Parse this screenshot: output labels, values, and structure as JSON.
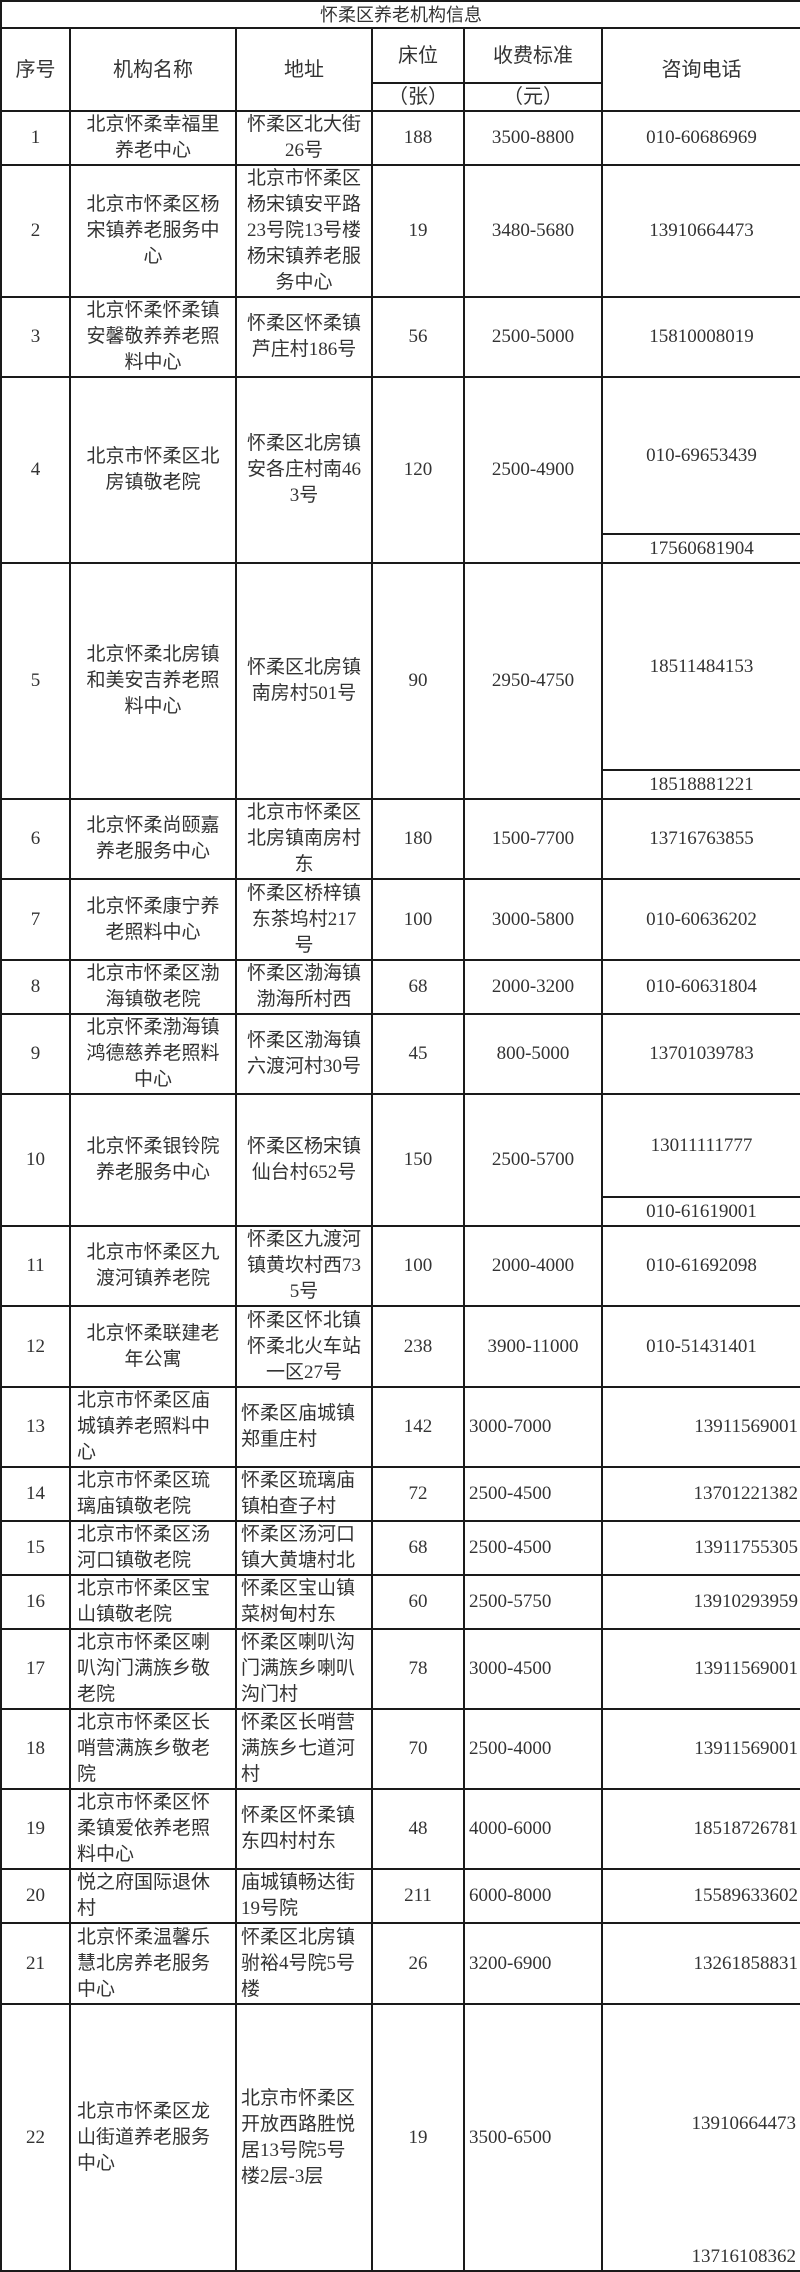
{
  "title": "怀柔区养老机构信息",
  "headers": {
    "id": "序号",
    "name": "机构名称",
    "address": "地址",
    "beds": "床位",
    "beds_unit": "（张）",
    "fee": "收费标准",
    "fee_unit": "（元）",
    "phone": "咨询电话"
  },
  "rows": [
    {
      "id": "1",
      "name": "北京怀柔幸福里养老中心",
      "address": "怀柔区北大街26号",
      "beds": "188",
      "fee": "3500-8800",
      "phones": [
        "010-60686969"
      ]
    },
    {
      "id": "2",
      "name": "北京市怀柔区杨宋镇养老服务中心",
      "address": "北京市怀柔区杨宋镇安平路23号院13号楼杨宋镇养老服务中心",
      "beds": "19",
      "fee": "3480-5680",
      "phones": [
        "13910664473"
      ]
    },
    {
      "id": "3",
      "name": "北京怀柔怀柔镇安馨敬养养老照料中心",
      "address": "怀柔区怀柔镇芦庄村186号",
      "beds": "56",
      "fee": "2500-5000",
      "phones": [
        "15810008019"
      ]
    },
    {
      "id": "4",
      "name": "北京市怀柔区北房镇敬老院",
      "address": "怀柔区北房镇安各庄村南463号",
      "beds": "120",
      "fee": "2500-4900",
      "phones": [
        "010-69653439",
        "17560681904"
      ]
    },
    {
      "id": "5",
      "name": "北京怀柔北房镇和美安吉养老照料中心",
      "address": "怀柔区北房镇南房村501号",
      "beds": "90",
      "fee": "2950-4750",
      "phones": [
        "18511484153",
        "18518881221"
      ]
    },
    {
      "id": "6",
      "name": "北京怀柔尚颐嘉养老服务中心",
      "address": "北京市怀柔区北房镇南房村东",
      "beds": "180",
      "fee": "1500-7700",
      "phones": [
        "13716763855"
      ]
    },
    {
      "id": "7",
      "name": "北京怀柔康宁养老照料中心",
      "address": "怀柔区桥梓镇东茶坞村217号",
      "beds": "100",
      "fee": "3000-5800",
      "phones": [
        "010-60636202"
      ]
    },
    {
      "id": "8",
      "name": "北京市怀柔区渤海镇敬老院",
      "address": "怀柔区渤海镇渤海所村西",
      "beds": "68",
      "fee": "2000-3200",
      "phones": [
        "010-60631804"
      ]
    },
    {
      "id": "9",
      "name": "北京怀柔渤海镇鸿德慈养老照料中心",
      "address": "怀柔区渤海镇六渡河村30号",
      "beds": "45",
      "fee": "800-5000",
      "phones": [
        "13701039783"
      ]
    },
    {
      "id": "10",
      "name": "北京怀柔银铃院养老服务中心",
      "address": "怀柔区杨宋镇仙台村652号",
      "beds": "150",
      "fee": "2500-5700",
      "phones": [
        "13011111777",
        "010-61619001"
      ]
    },
    {
      "id": "11",
      "name": "北京市怀柔区九渡河镇养老院",
      "address": "怀柔区九渡河镇黄坎村西735号",
      "beds": "100",
      "fee": "2000-4000",
      "phones": [
        "010-61692098"
      ]
    },
    {
      "id": "12",
      "name": "北京怀柔联建老年公寓",
      "address": "怀柔区怀北镇怀柔北火车站一区27号",
      "beds": "238",
      "fee": "3900-11000",
      "phones": [
        "010-51431401"
      ]
    },
    {
      "id": "13",
      "name": "北京市怀柔区庙城镇养老照料中心",
      "address": "怀柔区庙城镇郑重庄村",
      "beds": "142",
      "fee": "3000-7000",
      "phones": [
        "13911569001"
      ]
    },
    {
      "id": "14",
      "name": "北京市怀柔区琉璃庙镇敬老院",
      "address": "怀柔区琉璃庙镇柏查子村",
      "beds": "72",
      "fee": "2500-4500",
      "phones": [
        "13701221382"
      ]
    },
    {
      "id": "15",
      "name": "北京市怀柔区汤河口镇敬老院",
      "address": "怀柔区汤河口镇大黄塘村北",
      "beds": "68",
      "fee": "2500-4500",
      "phones": [
        "13911755305"
      ]
    },
    {
      "id": "16",
      "name": "北京市怀柔区宝山镇敬老院",
      "address": "怀柔区宝山镇菜树甸村东",
      "beds": "60",
      "fee": "2500-5750",
      "phones": [
        "13910293959"
      ]
    },
    {
      "id": "17",
      "name": "北京市怀柔区喇叭沟门满族乡敬老院",
      "address": "怀柔区喇叭沟门满族乡喇叭沟门村",
      "beds": "78",
      "fee": "3000-4500",
      "phones": [
        "13911569001"
      ]
    },
    {
      "id": "18",
      "name": "北京市怀柔区长哨营满族乡敬老院",
      "address": "怀柔区长哨营满族乡七道河村",
      "beds": "70",
      "fee": "2500-4000",
      "phones": [
        "13911569001"
      ]
    },
    {
      "id": "19",
      "name": "北京市怀柔区怀柔镇爱依养老照料中心",
      "address": "怀柔区怀柔镇东四村村东",
      "beds": "48",
      "fee": "4000-6000",
      "phones": [
        "18518726781"
      ]
    },
    {
      "id": "20",
      "name": "悦之府国际退休村",
      "address": "庙城镇畅达街19号院",
      "beds": "211",
      "fee": "6000-8000",
      "phones": [
        "15589633602"
      ]
    },
    {
      "id": "21",
      "name": "北京怀柔温馨乐慧北房养老服务中心",
      "address": "怀柔区北房镇驸裕4号院5号楼",
      "beds": "26",
      "fee": "3200-6900",
      "phones": [
        "13261858831"
      ]
    },
    {
      "id": "22",
      "name": "北京市怀柔区龙山街道养老服务中心",
      "address": "北京市怀柔区开放西路胜悦居13号院5号楼2层-3层",
      "beds": "19",
      "fee": "3500-6500",
      "phones": [
        "13910664473",
        "13716108362"
      ]
    }
  ]
}
